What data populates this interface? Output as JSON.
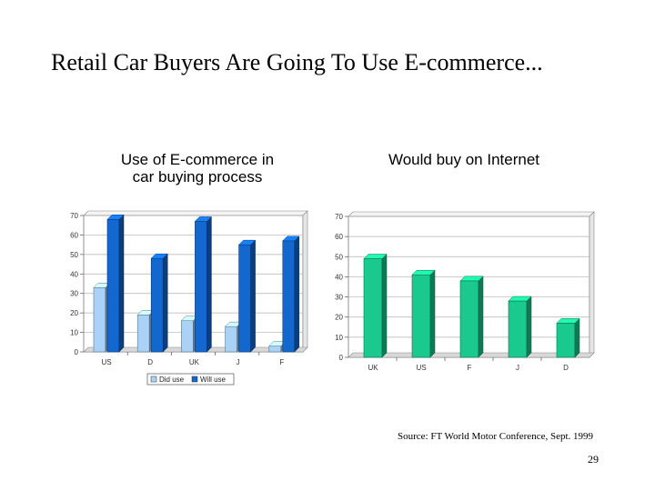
{
  "slide": {
    "title": "Retail Car Buyers Are Going To Use E-commerce...",
    "source": "Source: FT World Motor Conference, Sept. 1999",
    "page_number": "29"
  },
  "chart_data": [
    {
      "type": "bar",
      "title_lines": [
        "Use of E-commerce in",
        "car buying process"
      ],
      "categories": [
        "US",
        "D",
        "UK",
        "J",
        "F"
      ],
      "series": [
        {
          "name": "Did use",
          "values": [
            33,
            19,
            16,
            13,
            3
          ],
          "color": "#a9d2f6"
        },
        {
          "name": "Will use",
          "values": [
            68,
            48,
            67,
            55,
            57
          ],
          "color": "#1268cf"
        }
      ],
      "ylim": [
        0,
        70
      ],
      "yticks": [
        0,
        10,
        20,
        30,
        40,
        50,
        60,
        70
      ],
      "grid": true,
      "legend": "bottom"
    },
    {
      "type": "bar",
      "title_lines": [
        "Would buy on Internet"
      ],
      "categories": [
        "UK",
        "US",
        "F",
        "J",
        "D"
      ],
      "series": [
        {
          "values": [
            49,
            41,
            38,
            28,
            17
          ],
          "color": "#19c98d"
        }
      ],
      "ylim": [
        0,
        70
      ],
      "yticks": [
        0,
        10,
        20,
        30,
        40,
        50,
        60,
        70
      ],
      "grid": true,
      "legend": "none"
    }
  ]
}
